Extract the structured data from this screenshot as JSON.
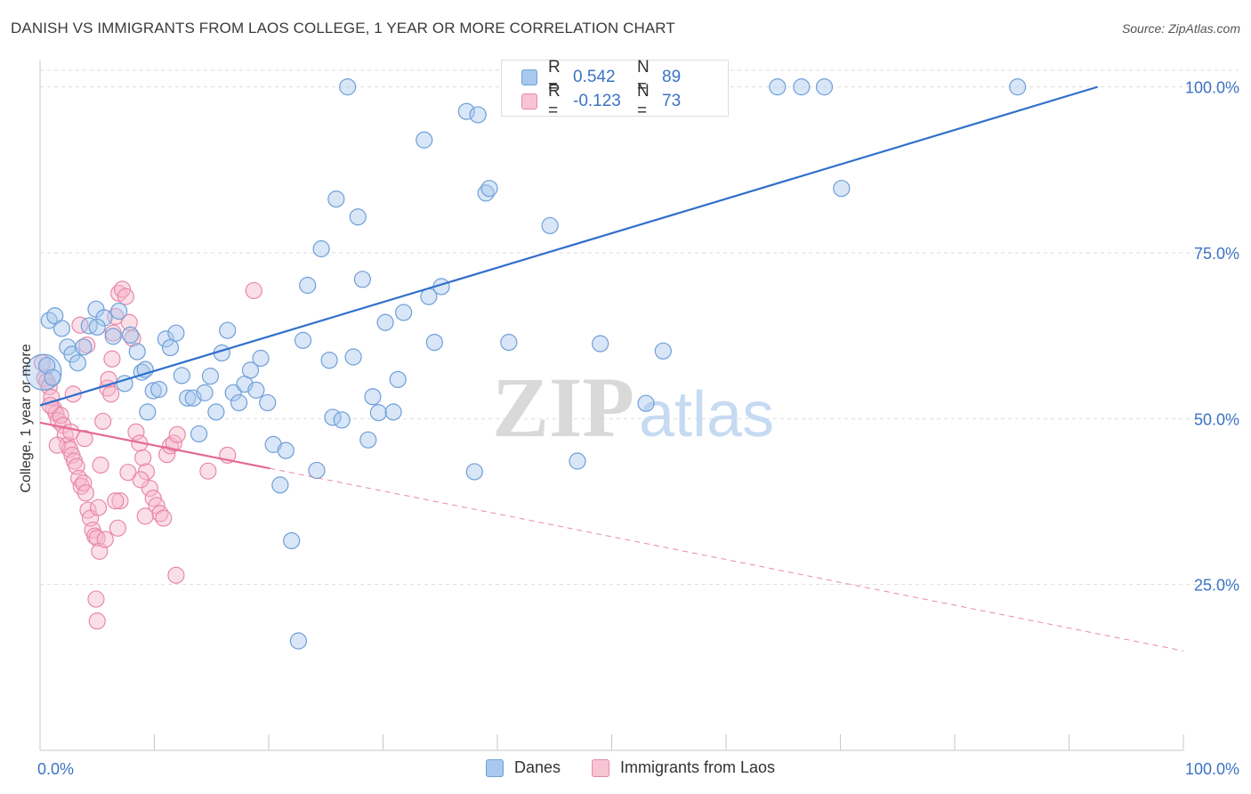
{
  "header": {
    "title": "DANISH VS IMMIGRANTS FROM LAOS COLLEGE, 1 YEAR OR MORE CORRELATION CHART",
    "source": "Source: ZipAtlas.com"
  },
  "watermark": {
    "zip": "ZIP",
    "atlas": "atlas"
  },
  "colors": {
    "danes_fill": "#a8c8ee",
    "danes_stroke": "#6f9fd8",
    "danes_line": "#2f6fcc",
    "laos_fill": "#f7b8cc",
    "laos_stroke": "#e888a8",
    "laos_line": "#e46a95",
    "tick_label": "#3b73c4",
    "grid": "#dddddd"
  },
  "legend_top": {
    "rows": [
      {
        "r_label": "R =",
        "r_value": "0.542",
        "n_label": "N =",
        "n_value": "89"
      },
      {
        "r_label": "R =",
        "r_value": "-0.123",
        "n_label": "N =",
        "n_value": "73"
      }
    ]
  },
  "legend_bottom": {
    "series": [
      "Danes",
      "Immigrants from Laos"
    ]
  },
  "chart_data": {
    "type": "scatter",
    "title": "DANISH VS IMMIGRANTS FROM LAOS COLLEGE, 1 YEAR OR MORE CORRELATION CHART",
    "xlabel": "",
    "ylabel": "College, 1 year or more",
    "xlim": [
      0,
      100
    ],
    "ylim": [
      0,
      102.5
    ],
    "x_tick_labels": [
      "0.0%",
      "100.0%"
    ],
    "y_tick_labels": [
      "25.0%",
      "50.0%",
      "75.0%",
      "100.0%"
    ],
    "y_ticks": [
      25,
      50,
      75,
      100
    ],
    "grid": true,
    "legend_placement": "top-center",
    "series": [
      {
        "name": "Danes",
        "r": 0.542,
        "n": 89,
        "trend": {
          "x": [
            0,
            92.5
          ],
          "y": [
            52.0,
            100.0
          ],
          "dashed_to": null
        },
        "points": [
          [
            0.3,
            57.0
          ],
          [
            0.8,
            64.8
          ],
          [
            1.3,
            65.5
          ],
          [
            1.9,
            63.6
          ],
          [
            2.4,
            60.8
          ],
          [
            2.8,
            59.7
          ],
          [
            3.3,
            58.4
          ],
          [
            3.8,
            60.8
          ],
          [
            4.3,
            64.0
          ],
          [
            4.9,
            66.5
          ],
          [
            5.6,
            65.2
          ],
          [
            6.4,
            62.4
          ],
          [
            6.9,
            66.2
          ],
          [
            7.4,
            55.3
          ],
          [
            7.9,
            62.6
          ],
          [
            8.5,
            60.1
          ],
          [
            8.9,
            57.0
          ],
          [
            9.4,
            51.0
          ],
          [
            9.9,
            54.2
          ],
          [
            10.4,
            54.4
          ],
          [
            11.0,
            62.0
          ],
          [
            11.4,
            60.7
          ],
          [
            11.9,
            62.9
          ],
          [
            12.4,
            56.5
          ],
          [
            12.9,
            53.1
          ],
          [
            13.4,
            53.1
          ],
          [
            13.9,
            47.7
          ],
          [
            14.4,
            53.9
          ],
          [
            14.9,
            56.4
          ],
          [
            15.4,
            51.0
          ],
          [
            15.9,
            59.9
          ],
          [
            16.4,
            63.3
          ],
          [
            16.9,
            53.9
          ],
          [
            17.4,
            52.4
          ],
          [
            17.9,
            55.2
          ],
          [
            18.4,
            57.3
          ],
          [
            18.9,
            54.3
          ],
          [
            19.3,
            59.1
          ],
          [
            19.9,
            52.4
          ],
          [
            20.4,
            46.1
          ],
          [
            21.0,
            40.0
          ],
          [
            21.5,
            45.2
          ],
          [
            22.0,
            31.6
          ],
          [
            22.6,
            16.5
          ],
          [
            23.0,
            61.8
          ],
          [
            23.4,
            70.1
          ],
          [
            24.2,
            42.2
          ],
          [
            24.6,
            75.6
          ],
          [
            25.3,
            58.8
          ],
          [
            25.6,
            50.2
          ],
          [
            25.9,
            83.1
          ],
          [
            26.4,
            49.8
          ],
          [
            26.9,
            100.0
          ],
          [
            27.4,
            59.3
          ],
          [
            27.8,
            80.4
          ],
          [
            28.2,
            71.0
          ],
          [
            28.7,
            46.8
          ],
          [
            29.1,
            53.3
          ],
          [
            29.6,
            50.9
          ],
          [
            30.2,
            64.5
          ],
          [
            30.9,
            51.0
          ],
          [
            31.3,
            55.9
          ],
          [
            31.8,
            66.0
          ],
          [
            33.6,
            92.0
          ],
          [
            34.0,
            68.4
          ],
          [
            34.5,
            61.5
          ],
          [
            35.1,
            69.9
          ],
          [
            37.3,
            96.3
          ],
          [
            38.0,
            42.0
          ],
          [
            38.3,
            95.8
          ],
          [
            39.0,
            84.0
          ],
          [
            39.3,
            84.7
          ],
          [
            41.0,
            61.5
          ],
          [
            44.0,
            100.0
          ],
          [
            44.6,
            79.1
          ],
          [
            47.0,
            43.6
          ],
          [
            49.0,
            61.3
          ],
          [
            53.0,
            52.3
          ],
          [
            54.5,
            60.2
          ],
          [
            59.0,
            100.0
          ],
          [
            64.5,
            100.0
          ],
          [
            66.6,
            100.0
          ],
          [
            68.6,
            100.0
          ],
          [
            70.1,
            84.7
          ],
          [
            85.5,
            100.0
          ],
          [
            0.6,
            58.0
          ],
          [
            1.1,
            56.2
          ],
          [
            5.0,
            63.8
          ],
          [
            9.2,
            57.4
          ]
        ]
      },
      {
        "name": "Immigrants from Laos",
        "r": -0.123,
        "n": 73,
        "trend": {
          "x": [
            0,
            20.1
          ],
          "y": [
            49.4,
            42.5
          ],
          "dashed_to": [
            100,
            15.0
          ]
        },
        "points": [
          [
            0.2,
            58.4
          ],
          [
            0.4,
            56.1
          ],
          [
            0.6,
            55.6
          ],
          [
            0.8,
            54.8
          ],
          [
            1.0,
            53.2
          ],
          [
            1.2,
            51.5
          ],
          [
            1.4,
            50.8
          ],
          [
            1.6,
            49.7
          ],
          [
            1.8,
            50.5
          ],
          [
            2.0,
            49.0
          ],
          [
            2.2,
            47.5
          ],
          [
            2.4,
            46.0
          ],
          [
            2.6,
            45.4
          ],
          [
            2.8,
            44.5
          ],
          [
            3.0,
            43.6
          ],
          [
            3.2,
            42.8
          ],
          [
            3.4,
            41.0
          ],
          [
            3.6,
            39.8
          ],
          [
            3.8,
            40.3
          ],
          [
            4.0,
            38.8
          ],
          [
            4.2,
            36.2
          ],
          [
            4.4,
            35.0
          ],
          [
            4.6,
            33.2
          ],
          [
            4.8,
            32.3
          ],
          [
            5.0,
            32.0
          ],
          [
            5.2,
            30.0
          ],
          [
            5.5,
            49.6
          ],
          [
            5.9,
            54.6
          ],
          [
            6.0,
            55.9
          ],
          [
            6.3,
            59.0
          ],
          [
            6.6,
            65.4
          ],
          [
            6.9,
            68.9
          ],
          [
            7.2,
            69.5
          ],
          [
            7.5,
            68.4
          ],
          [
            7.8,
            64.5
          ],
          [
            8.1,
            62.1
          ],
          [
            8.4,
            48.0
          ],
          [
            8.7,
            46.3
          ],
          [
            9.0,
            44.1
          ],
          [
            9.3,
            42.0
          ],
          [
            9.6,
            39.5
          ],
          [
            9.9,
            38.0
          ],
          [
            10.2,
            36.9
          ],
          [
            10.5,
            35.7
          ],
          [
            10.8,
            35.0
          ],
          [
            11.1,
            44.6
          ],
          [
            11.4,
            45.9
          ],
          [
            11.7,
            46.3
          ],
          [
            12.0,
            47.6
          ],
          [
            3.5,
            64.1
          ],
          [
            4.1,
            61.1
          ],
          [
            2.9,
            53.7
          ],
          [
            1.5,
            46.0
          ],
          [
            2.7,
            48.0
          ],
          [
            3.9,
            47.0
          ],
          [
            6.2,
            53.7
          ],
          [
            6.4,
            62.9
          ],
          [
            5.3,
            43.0
          ],
          [
            5.1,
            36.6
          ],
          [
            5.7,
            31.8
          ],
          [
            4.9,
            22.8
          ],
          [
            5.0,
            19.5
          ],
          [
            11.9,
            26.4
          ],
          [
            14.7,
            42.1
          ],
          [
            16.4,
            44.5
          ],
          [
            18.7,
            69.3
          ],
          [
            9.2,
            35.3
          ],
          [
            8.8,
            40.8
          ],
          [
            7.7,
            41.9
          ],
          [
            7.0,
            37.6
          ],
          [
            6.6,
            37.6
          ],
          [
            6.8,
            33.5
          ],
          [
            0.9,
            52.0
          ]
        ]
      }
    ]
  }
}
